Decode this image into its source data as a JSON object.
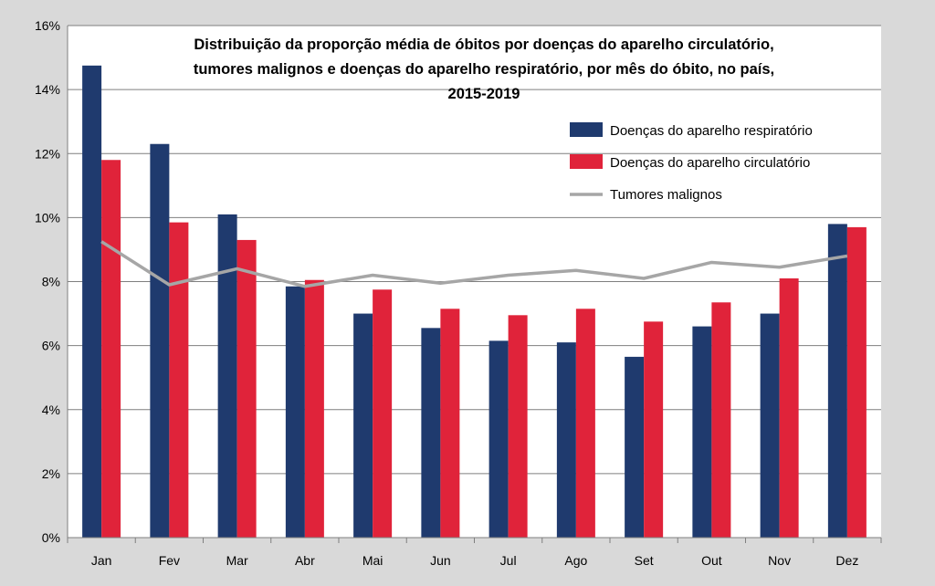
{
  "chart_data": {
    "type": "bar",
    "title_lines": [
      "Distribuição da proporção média de óbitos por doenças do aparelho circulatório,",
      "tumores malignos e doenças do aparelho respiratório, por mês do óbito, no país,",
      "2015-2019"
    ],
    "xlabel": "",
    "ylabel": "",
    "categories": [
      "Jan",
      "Fev",
      "Mar",
      "Abr",
      "Mai",
      "Jun",
      "Jul",
      "Ago",
      "Set",
      "Out",
      "Nov",
      "Dez"
    ],
    "ylim": [
      0,
      16
    ],
    "yticks": [
      0,
      2,
      4,
      6,
      8,
      10,
      12,
      14,
      16
    ],
    "ytick_labels": [
      "0%",
      "2%",
      "4%",
      "6%",
      "8%",
      "10%",
      "12%",
      "14%",
      "16%"
    ],
    "grid": true,
    "legend_position": "top-right",
    "series": [
      {
        "name": "Doenças do aparelho respiratório",
        "kind": "bar",
        "color": "#1f3a6e",
        "values": [
          14.75,
          12.3,
          10.1,
          7.85,
          7.0,
          6.55,
          6.15,
          6.1,
          5.65,
          6.6,
          7.0,
          9.8
        ]
      },
      {
        "name": "Doenças do aparelho circulatório",
        "kind": "bar",
        "color": "#e0233a",
        "values": [
          11.8,
          9.85,
          9.3,
          8.05,
          7.75,
          7.15,
          6.95,
          7.15,
          6.75,
          7.35,
          8.1,
          9.7
        ]
      },
      {
        "name": "Tumores malignos",
        "kind": "line",
        "color": "#a6a6a6",
        "values": [
          9.25,
          7.9,
          8.4,
          7.85,
          8.2,
          7.95,
          8.2,
          8.35,
          8.1,
          8.6,
          8.45,
          8.8
        ]
      }
    ]
  },
  "colors": {
    "page_background": "#d9d9d9",
    "plot_background": "#ffffff",
    "gridline": "#7f7f7f"
  }
}
